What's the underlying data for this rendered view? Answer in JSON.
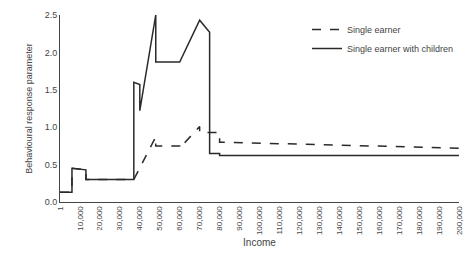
{
  "chart_data": {
    "type": "line",
    "xlabel": "Income",
    "ylabel": "Behavioural response parameter",
    "xlim": [
      1,
      200000
    ],
    "ylim": [
      0.0,
      2.5
    ],
    "xticks": [
      1,
      {
        "value": 10000,
        "label": "10,000"
      },
      {
        "value": 20000,
        "label": "20,000"
      },
      {
        "value": 30000,
        "label": "30,000"
      },
      {
        "value": 40000,
        "label": "40,000"
      },
      {
        "value": 50000,
        "label": "50,000"
      },
      {
        "value": 60000,
        "label": "60,000"
      },
      {
        "value": 70000,
        "label": "70,000"
      },
      {
        "value": 80000,
        "label": "80,000"
      },
      {
        "value": 90000,
        "label": "90,000"
      },
      {
        "value": 100000,
        "label": "100,000"
      },
      {
        "value": 110000,
        "label": "110,000"
      },
      {
        "value": 120000,
        "label": "120,000"
      },
      {
        "value": 130000,
        "label": "130,000"
      },
      {
        "value": 140000,
        "label": "140,000"
      },
      {
        "value": 150000,
        "label": "150,000"
      },
      {
        "value": 160000,
        "label": "160,000"
      },
      {
        "value": 170000,
        "label": "170,000"
      },
      {
        "value": 180000,
        "label": "180,000"
      },
      {
        "value": 190000,
        "label": "190,000"
      },
      {
        "value": 200000,
        "label": "200,000"
      }
    ],
    "yticks": [
      {
        "value": 0.0,
        "label": "0.0"
      },
      0.5,
      {
        "value": 1.0,
        "label": "1.0"
      },
      1.5,
      {
        "value": 2.0,
        "label": "2.0"
      },
      2.5
    ],
    "grid": false,
    "legend": "upper right",
    "series": [
      {
        "name": "Single earner",
        "color": "#2a2a2a",
        "line_style": "dashed",
        "x": [
          1,
          6000,
          6000,
          13000,
          13000,
          37000,
          37000,
          48000,
          48000,
          60000,
          60000,
          70000,
          70000,
          80000,
          80000,
          200000
        ],
        "values": [
          0.13,
          0.13,
          0.45,
          0.43,
          0.3,
          0.3,
          0.3,
          0.87,
          0.75,
          0.75,
          0.72,
          1.01,
          0.93,
          0.93,
          0.8,
          0.72
        ]
      },
      {
        "name": "Single earner with children",
        "color": "#2a2a2a",
        "line_style": "solid",
        "x": [
          1,
          6000,
          6000,
          13000,
          13000,
          37000,
          37000,
          40000,
          40000,
          48000,
          48000,
          60000,
          60000,
          70000,
          70000,
          75000,
          75000,
          80000,
          80000,
          200000
        ],
        "values": [
          0.13,
          0.13,
          0.45,
          0.43,
          0.3,
          0.3,
          1.6,
          1.57,
          1.22,
          2.5,
          1.87,
          1.87,
          1.87,
          2.43,
          2.43,
          2.27,
          0.65,
          0.65,
          0.62,
          0.62
        ]
      }
    ]
  }
}
